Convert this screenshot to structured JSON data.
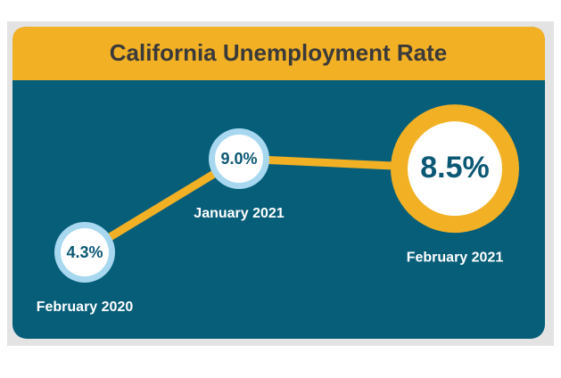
{
  "chart_data": {
    "type": "line",
    "title": "California Unemployment Rate",
    "categories": [
      "February 2020",
      "January 2021",
      "February 2021"
    ],
    "values": [
      4.3,
      9.0,
      8.5
    ],
    "value_labels": [
      "4.3%",
      "9.0%",
      "8.5%"
    ],
    "color": "#f2b024"
  }
}
